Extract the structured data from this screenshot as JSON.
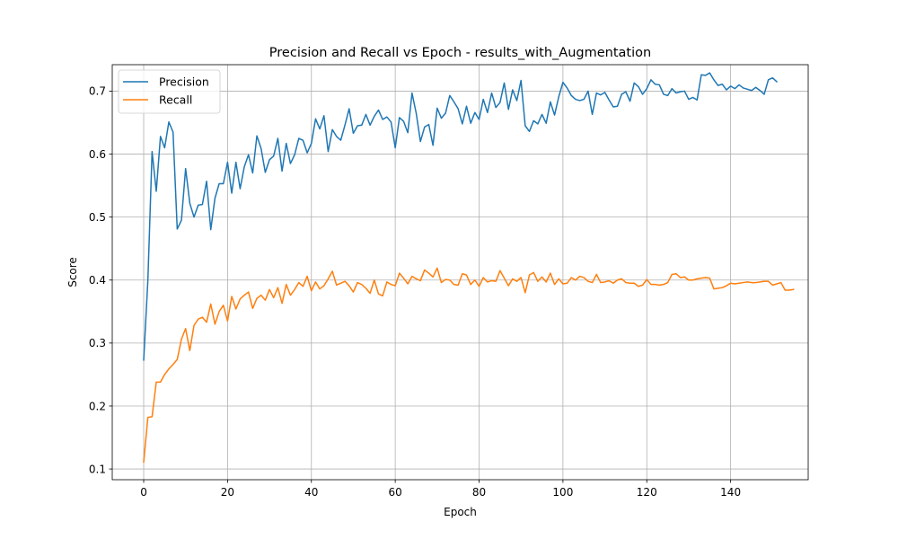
{
  "chart_data": {
    "type": "line",
    "title": "Precision and Recall vs Epoch - results_with_Augmentation",
    "xlabel": "Epoch",
    "ylabel": "Score",
    "xlim": [
      -7.5,
      158.5
    ],
    "ylim": [
      0.083,
      0.742
    ],
    "xticks": [
      0,
      20,
      40,
      60,
      80,
      100,
      120,
      140
    ],
    "yticks": [
      0.1,
      0.2,
      0.3,
      0.4,
      0.5,
      0.6,
      0.7
    ],
    "grid": true,
    "legend_position": "top-left",
    "series": [
      {
        "name": "Precision",
        "color": "#1f77b4",
        "values": [
          0.273,
          0.4,
          0.604,
          0.541,
          0.628,
          0.61,
          0.651,
          0.635,
          0.481,
          0.495,
          0.577,
          0.522,
          0.5,
          0.519,
          0.52,
          0.557,
          0.48,
          0.53,
          0.553,
          0.553,
          0.587,
          0.538,
          0.587,
          0.545,
          0.58,
          0.599,
          0.57,
          0.629,
          0.609,
          0.571,
          0.591,
          0.597,
          0.625,
          0.573,
          0.617,
          0.585,
          0.599,
          0.625,
          0.622,
          0.602,
          0.617,
          0.656,
          0.64,
          0.661,
          0.604,
          0.639,
          0.628,
          0.622,
          0.646,
          0.672,
          0.633,
          0.645,
          0.646,
          0.663,
          0.646,
          0.66,
          0.67,
          0.655,
          0.659,
          0.651,
          0.61,
          0.658,
          0.652,
          0.634,
          0.697,
          0.665,
          0.62,
          0.643,
          0.647,
          0.614,
          0.673,
          0.657,
          0.665,
          0.693,
          0.683,
          0.672,
          0.648,
          0.676,
          0.649,
          0.666,
          0.655,
          0.687,
          0.666,
          0.697,
          0.674,
          0.682,
          0.713,
          0.671,
          0.702,
          0.685,
          0.717,
          0.645,
          0.636,
          0.653,
          0.648,
          0.663,
          0.649,
          0.683,
          0.662,
          0.691,
          0.714,
          0.705,
          0.693,
          0.687,
          0.685,
          0.687,
          0.7,
          0.663,
          0.697,
          0.694,
          0.698,
          0.686,
          0.675,
          0.676,
          0.695,
          0.699,
          0.684,
          0.713,
          0.707,
          0.695,
          0.704,
          0.718,
          0.711,
          0.71,
          0.695,
          0.693,
          0.704,
          0.697,
          0.699,
          0.7,
          0.687,
          0.69,
          0.686,
          0.726,
          0.725,
          0.729,
          0.718,
          0.709,
          0.711,
          0.702,
          0.708,
          0.704,
          0.71,
          0.705,
          0.703,
          0.701,
          0.706,
          0.701,
          0.695,
          0.718,
          0.721,
          0.715
        ]
      },
      {
        "name": "Recall",
        "color": "#ff7f0e",
        "values": [
          0.111,
          0.182,
          0.183,
          0.238,
          0.238,
          0.25,
          0.259,
          0.266,
          0.274,
          0.306,
          0.323,
          0.288,
          0.328,
          0.338,
          0.341,
          0.333,
          0.362,
          0.33,
          0.35,
          0.36,
          0.335,
          0.374,
          0.354,
          0.37,
          0.376,
          0.381,
          0.355,
          0.371,
          0.376,
          0.368,
          0.385,
          0.372,
          0.388,
          0.363,
          0.393,
          0.376,
          0.385,
          0.396,
          0.39,
          0.406,
          0.383,
          0.397,
          0.386,
          0.391,
          0.402,
          0.414,
          0.392,
          0.395,
          0.398,
          0.391,
          0.381,
          0.396,
          0.393,
          0.387,
          0.379,
          0.4,
          0.378,
          0.375,
          0.397,
          0.393,
          0.391,
          0.411,
          0.403,
          0.394,
          0.406,
          0.402,
          0.399,
          0.416,
          0.411,
          0.405,
          0.419,
          0.396,
          0.401,
          0.4,
          0.393,
          0.392,
          0.41,
          0.408,
          0.393,
          0.4,
          0.39,
          0.404,
          0.397,
          0.399,
          0.398,
          0.415,
          0.403,
          0.391,
          0.402,
          0.398,
          0.404,
          0.38,
          0.408,
          0.412,
          0.398,
          0.405,
          0.397,
          0.411,
          0.393,
          0.402,
          0.394,
          0.395,
          0.404,
          0.4,
          0.406,
          0.404,
          0.398,
          0.396,
          0.409,
          0.396,
          0.397,
          0.399,
          0.395,
          0.4,
          0.402,
          0.396,
          0.395,
          0.395,
          0.39,
          0.392,
          0.401,
          0.393,
          0.393,
          0.392,
          0.393,
          0.396,
          0.409,
          0.41,
          0.404,
          0.405,
          0.4,
          0.4,
          0.402,
          0.403,
          0.404,
          0.403,
          0.386,
          0.387,
          0.388,
          0.391,
          0.395,
          0.394,
          0.395,
          0.396,
          0.397,
          0.396,
          0.396,
          0.397,
          0.398,
          0.398,
          0.392,
          0.394,
          0.396,
          0.384,
          0.384,
          0.385
        ]
      }
    ]
  }
}
